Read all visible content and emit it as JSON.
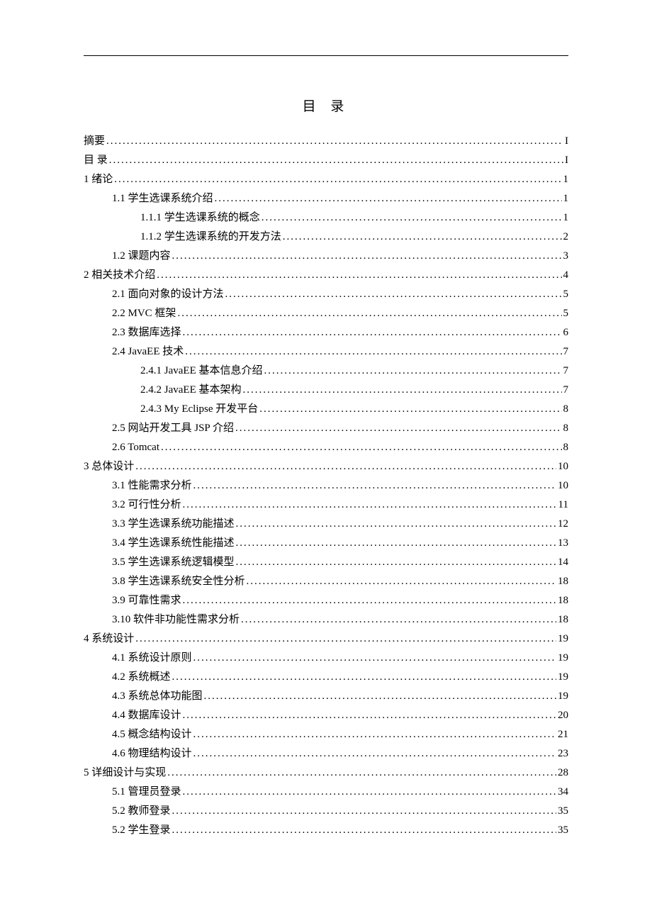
{
  "title": "目 录",
  "entries": [
    {
      "level": 0,
      "label": "摘要",
      "page": "I"
    },
    {
      "level": 0,
      "label": "目 录",
      "page": "I"
    },
    {
      "level": 0,
      "label": "1 绪论",
      "page": "1"
    },
    {
      "level": 1,
      "label": "1.1 学生选课系统介绍",
      "page": "1"
    },
    {
      "level": 2,
      "label": "1.1.1  学生选课系统的概念",
      "page": "1"
    },
    {
      "level": 2,
      "label": "1.1.2  学生选课系统的开发方法",
      "page": "2"
    },
    {
      "level": 1,
      "label": "1.2 课题内容",
      "page": "3"
    },
    {
      "level": 0,
      "label": "2 相关技术介绍",
      "page": "4"
    },
    {
      "level": 1,
      "label": "2.1 面向对象的设计方法",
      "page": "5"
    },
    {
      "level": 1,
      "label": "2.2 MVC 框架",
      "page": "5"
    },
    {
      "level": 1,
      "label": "2.3 数据库选择",
      "page": "6"
    },
    {
      "level": 1,
      "label": "2.4  JavaEE 技术",
      "page": "7"
    },
    {
      "level": 2,
      "label": "2.4.1  JavaEE 基本信息介绍",
      "page": "7"
    },
    {
      "level": 2,
      "label": "2.4.2  JavaEE 基本架构",
      "page": "7"
    },
    {
      "level": 2,
      "label": "2.4.3 My Eclipse 开发平台",
      "page": "8"
    },
    {
      "level": 1,
      "label": "2.5 网站开发工具 JSP 介绍",
      "page": "8"
    },
    {
      "level": 1,
      "label": "2.6 Tomcat",
      "page": "8"
    },
    {
      "level": 0,
      "label": "3  总体设计",
      "page": "10"
    },
    {
      "level": 1,
      "label": "3.1 性能需求分析",
      "page": "10"
    },
    {
      "level": 1,
      "label": "3.2 可行性分析",
      "page": "11"
    },
    {
      "level": 1,
      "label": "3.3 学生选课系统功能描述",
      "page": "12"
    },
    {
      "level": 1,
      "label": "3.4 学生选课系统性能描述",
      "page": "13"
    },
    {
      "level": 1,
      "label": "3.5 学生选课系统逻辑模型",
      "page": "14"
    },
    {
      "level": 1,
      "label": "3.8 学生选课系统安全性分析",
      "page": "18"
    },
    {
      "level": 1,
      "label": "3.9 可靠性需求",
      "page": "18"
    },
    {
      "level": 1,
      "label": "3.10 软件非功能性需求分析",
      "page": "18"
    },
    {
      "level": 0,
      "label": "4 系统设计",
      "page": "19"
    },
    {
      "level": 1,
      "label": "4.1 系统设计原则",
      "page": "19"
    },
    {
      "level": 1,
      "label": "4.2 系统概述",
      "page": "19"
    },
    {
      "level": 1,
      "label": "4.3 系统总体功能图",
      "page": "19"
    },
    {
      "level": 1,
      "label": "4.4 数据库设计",
      "page": "20"
    },
    {
      "level": 1,
      "label": "4.5 概念结构设计",
      "page": "21"
    },
    {
      "level": 1,
      "label": "4.6 物理结构设计",
      "page": "23"
    },
    {
      "level": 0,
      "label": "5  详细设计与实现",
      "page": "28"
    },
    {
      "level": 1,
      "label": "5.1 管理员登录",
      "page": "34"
    },
    {
      "level": 1,
      "label": "5.2 教师登录",
      "page": "35"
    },
    {
      "level": 1,
      "label": "5.2 学生登录",
      "page": "35"
    }
  ]
}
